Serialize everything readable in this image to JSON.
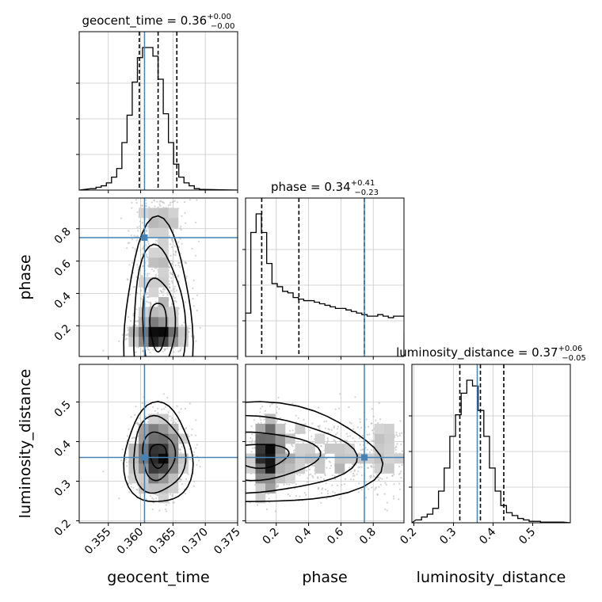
{
  "chart_data": {
    "type": "corner",
    "parameters": [
      "geocent_time",
      "phase",
      "luminosity_distance"
    ],
    "truths": {
      "geocent_time": 0.3606,
      "phase": 0.745,
      "luminosity_distance": 0.36
    },
    "colors": {
      "truth": "#4682b4",
      "contour": "#000000",
      "grid": "#c8c8c8",
      "points": "#b4b4b4"
    },
    "grid": true,
    "titles": {
      "geocent_time": {
        "label": "geocent_time",
        "median": "0.36",
        "plus": "+0.00",
        "minus": "−0.00"
      },
      "phase": {
        "label": "phase",
        "median": "0.34",
        "plus": "+0.41",
        "minus": "−0.23"
      },
      "luminosity_distance": {
        "label": "luminosity_distance",
        "median": "0.37",
        "plus": "+0.06",
        "minus": "−0.05"
      }
    },
    "ranges": {
      "geocent_time": [
        0.3505,
        0.375
      ],
      "phase": [
        0.01,
        0.99
      ],
      "luminosity_distance": [
        0.195,
        0.595
      ]
    },
    "ticks": {
      "geocent_time": {
        "values": [
          0.355,
          0.36,
          0.365,
          0.37,
          0.375
        ],
        "labels": [
          "0.355",
          "0.360",
          "0.365",
          "0.370",
          "0.375"
        ]
      },
      "phase": {
        "values": [
          0.2,
          0.4,
          0.6,
          0.8
        ],
        "labels": [
          "0.2",
          "0.4",
          "0.6",
          "0.8"
        ]
      },
      "luminosity_distance": {
        "values": [
          0.2,
          0.3,
          0.4,
          0.5
        ],
        "labels": [
          "0.2",
          "0.3",
          "0.4",
          "0.5"
        ]
      }
    },
    "quantiles": {
      "geocent_time": [
        0.3598,
        0.3627,
        0.3656
      ],
      "phase": [
        0.11,
        0.34,
        0.745
      ],
      "luminosity_distance": [
        0.316,
        0.368,
        0.427
      ]
    },
    "histograms": {
      "geocent_time": {
        "x_start": 0.3523,
        "bin_width": 0.0008,
        "counts": [
          1,
          2,
          3,
          5,
          9,
          15,
          33,
          52,
          75,
          92,
          99,
          99,
          93,
          77,
          53,
          33,
          18,
          9,
          5,
          3,
          1,
          0.5
        ]
      },
      "phase": {
        "x_start": 0.01,
        "bin_width": 0.0327,
        "counts": [
          28,
          80,
          92,
          80,
          60,
          47,
          45,
          42,
          41,
          38,
          37,
          36,
          36,
          35,
          34,
          33,
          32,
          31,
          31,
          30,
          29,
          28,
          27,
          26,
          26,
          27,
          26,
          25,
          26,
          26
        ]
      },
      "luminosity_distance": {
        "x_start": 0.205,
        "bin_width": 0.0143,
        "counts": [
          2,
          4,
          6,
          10,
          22,
          38,
          60,
          75,
          90,
          99,
          95,
          78,
          60,
          38,
          22,
          12,
          7,
          5,
          3,
          2,
          1,
          1,
          0.5,
          0.5,
          0.5,
          0.5
        ]
      }
    }
  }
}
